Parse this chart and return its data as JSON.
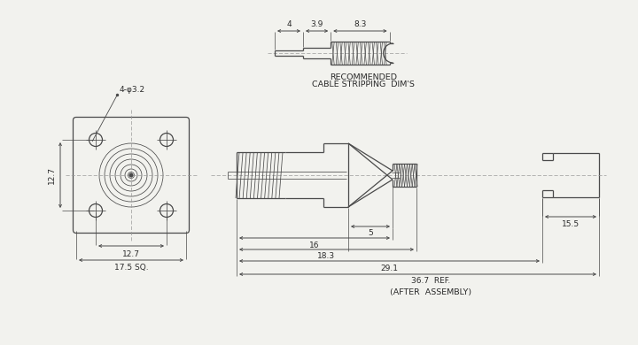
{
  "bg_color": "#f2f2ee",
  "line_color": "#4a4a4a",
  "dim_color": "#4a4a4a",
  "text_color": "#2a2a2a",
  "rec_text_line1": "RECOMMENDED",
  "rec_text_line2": "CABLE STRIPPING  DIM'S",
  "after_assembly": "(AFTER  ASSEMBLY)",
  "dim_4phi32": "4-φ3.2",
  "dim_127_vert": "12.7",
  "dim_127_horiz": "12.7",
  "dim_175sq": "17.5 SQ.",
  "dim_4": "4",
  "dim_39": "3.9",
  "dim_83": "8.3",
  "dim_5": "5",
  "dim_16": "16",
  "dim_183": "18.3",
  "dim_291": "29.1",
  "dim_367": "36.7",
  "dim_ref": "REF.",
  "dim_155": "15.5"
}
